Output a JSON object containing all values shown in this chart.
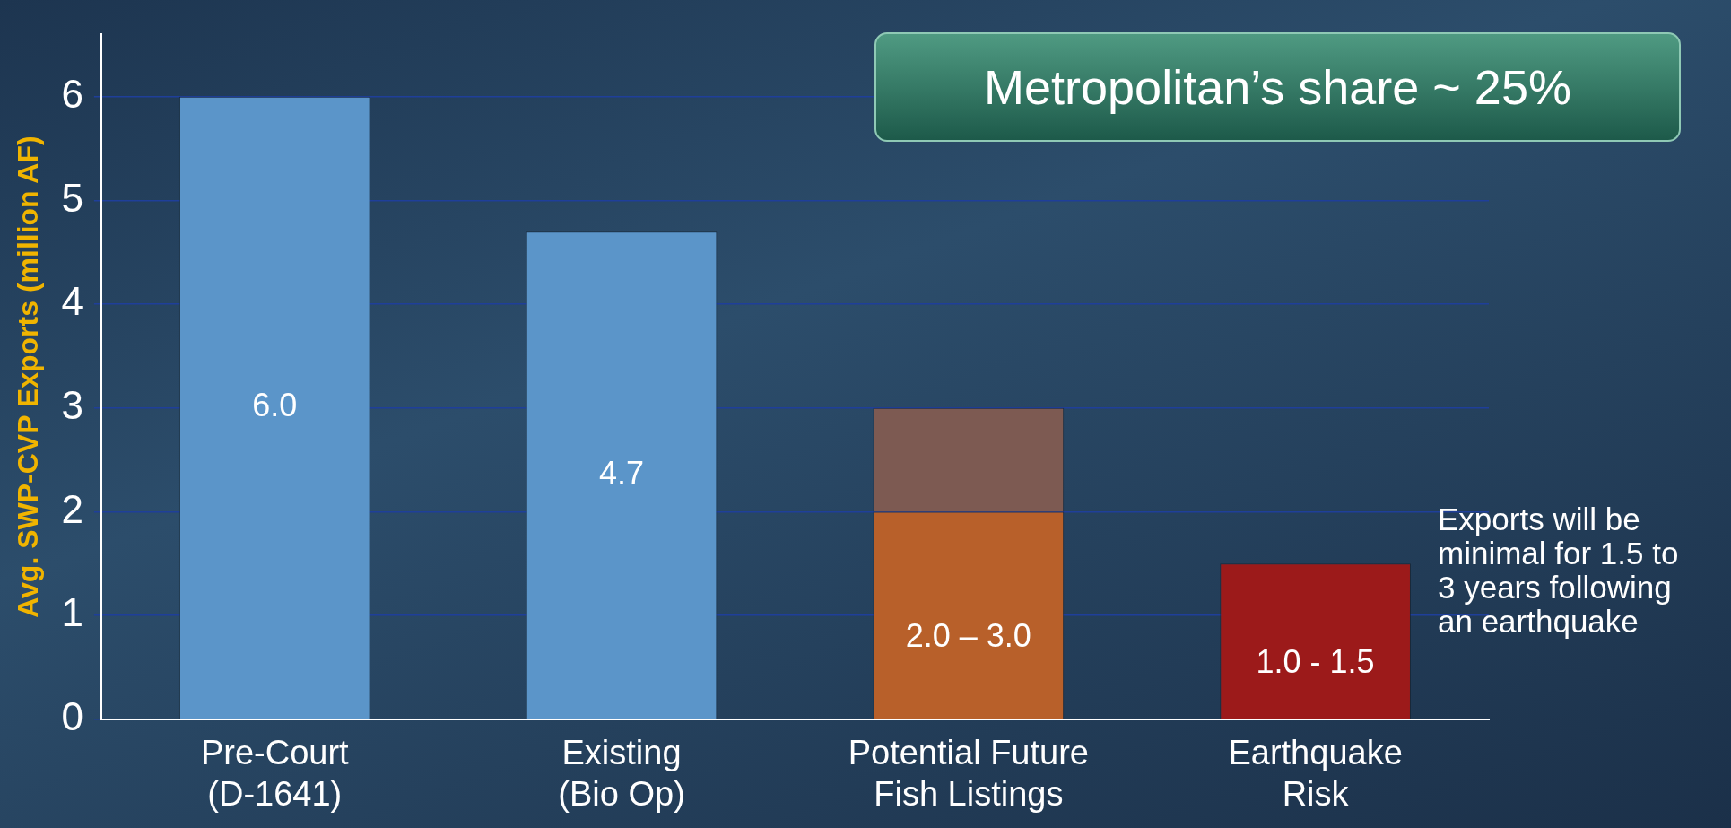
{
  "chart_data": {
    "type": "bar",
    "stacked": true,
    "ylabel": "Avg. SWP-CVP Exports (million AF)",
    "categories": [
      "Pre-Court (D-1641)",
      "Existing (Bio Op)",
      "Potential Future Fish Listings",
      "Earthquake Risk"
    ],
    "series": [
      {
        "colors": [
          "#5b95c9",
          "#5b95c9",
          "#b8602a",
          "#9c1a1a"
        ],
        "values": [
          6.0,
          4.7,
          2.0,
          1.5
        ],
        "value_labels": [
          "6.0",
          "4.7",
          null,
          null
        ]
      },
      {
        "color": "#7d5a52",
        "values": [
          null,
          null,
          1.0,
          null
        ]
      }
    ],
    "ylim": [
      0,
      6.6
    ],
    "yticks": [
      0,
      1,
      2,
      3,
      4,
      5,
      6
    ],
    "grid": "y",
    "legend": false,
    "annotations": [
      "Metropolitan’s share ~ 25%",
      "Exports will be minimal for 1.5 to 3 years following an earthquake",
      "2.0 – 3.0",
      "1.0 - 1.5"
    ]
  }
}
